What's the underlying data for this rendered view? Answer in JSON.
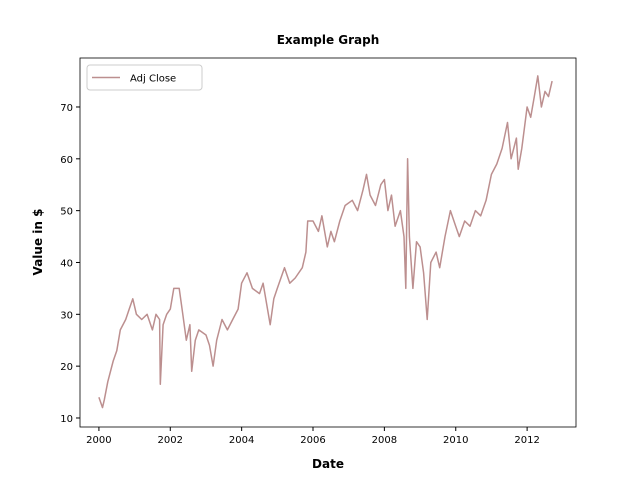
{
  "chart_data": {
    "type": "line",
    "title": "Example Graph",
    "x_label": "Date",
    "y_label": "Value in $",
    "x": [
      2000.0,
      2000.1,
      2000.15,
      2000.25,
      2000.4,
      2000.5,
      2000.6,
      2000.75,
      2000.85,
      2000.95,
      2001.05,
      2001.2,
      2001.35,
      2001.5,
      2001.6,
      2001.7,
      2001.72,
      2001.8,
      2001.9,
      2002.0,
      2002.1,
      2002.25,
      2002.35,
      2002.45,
      2002.55,
      2002.6,
      2002.7,
      2002.8,
      2003.0,
      2003.1,
      2003.2,
      2003.3,
      2003.45,
      2003.6,
      2003.75,
      2003.9,
      2004.0,
      2004.15,
      2004.3,
      2004.5,
      2004.6,
      2004.75,
      2004.8,
      2004.9,
      2005.0,
      2005.2,
      2005.35,
      2005.5,
      2005.7,
      2005.8,
      2005.85,
      2006.0,
      2006.15,
      2006.25,
      2006.4,
      2006.5,
      2006.6,
      2006.75,
      2006.9,
      2007.1,
      2007.25,
      2007.4,
      2007.5,
      2007.6,
      2007.75,
      2007.9,
      2008.0,
      2008.1,
      2008.2,
      2008.3,
      2008.45,
      2008.55,
      2008.6,
      2008.65,
      2008.7,
      2008.8,
      2008.9,
      2009.0,
      2009.1,
      2009.2,
      2009.3,
      2009.45,
      2009.55,
      2009.7,
      2009.85,
      2010.0,
      2010.1,
      2010.25,
      2010.4,
      2010.55,
      2010.7,
      2010.85,
      2011.0,
      2011.15,
      2011.3,
      2011.45,
      2011.55,
      2011.7,
      2011.75,
      2011.85,
      2012.0,
      2012.1,
      2012.2,
      2012.3,
      2012.4,
      2012.5,
      2012.6,
      2012.7
    ],
    "series": [
      {
        "name": "Adj Close",
        "color": "#bc8f8f",
        "values": [
          14,
          12,
          13.5,
          17,
          21,
          23,
          27,
          29,
          31,
          33,
          30,
          29,
          30,
          27,
          30,
          29,
          16.5,
          28,
          30,
          31,
          35,
          35,
          30,
          25,
          28,
          19,
          25,
          27,
          26,
          24,
          20,
          25,
          29,
          27,
          29,
          31,
          36,
          38,
          35,
          34,
          36,
          30,
          28,
          33,
          35,
          39,
          36,
          37,
          39,
          42,
          48,
          48,
          46,
          49,
          43,
          46,
          44,
          48,
          51,
          52,
          50,
          54,
          57,
          53,
          51,
          55,
          56,
          50,
          53,
          47,
          50,
          45,
          35,
          60,
          45,
          35,
          44,
          43,
          38,
          29,
          40,
          42,
          39,
          45,
          50,
          47,
          45,
          48,
          47,
          50,
          49,
          52,
          57,
          59,
          62,
          67,
          60,
          64,
          58,
          62,
          70,
          68,
          72,
          76,
          70,
          73,
          72,
          75
        ]
      }
    ],
    "xlim": [
      1999.47,
      2013.37
    ],
    "ylim": [
      8.26,
      79.45
    ],
    "xticks": [
      2000,
      2002,
      2004,
      2006,
      2008,
      2010,
      2012
    ],
    "yticks": [
      10,
      20,
      30,
      40,
      50,
      60,
      70
    ],
    "legend": "upper left"
  }
}
